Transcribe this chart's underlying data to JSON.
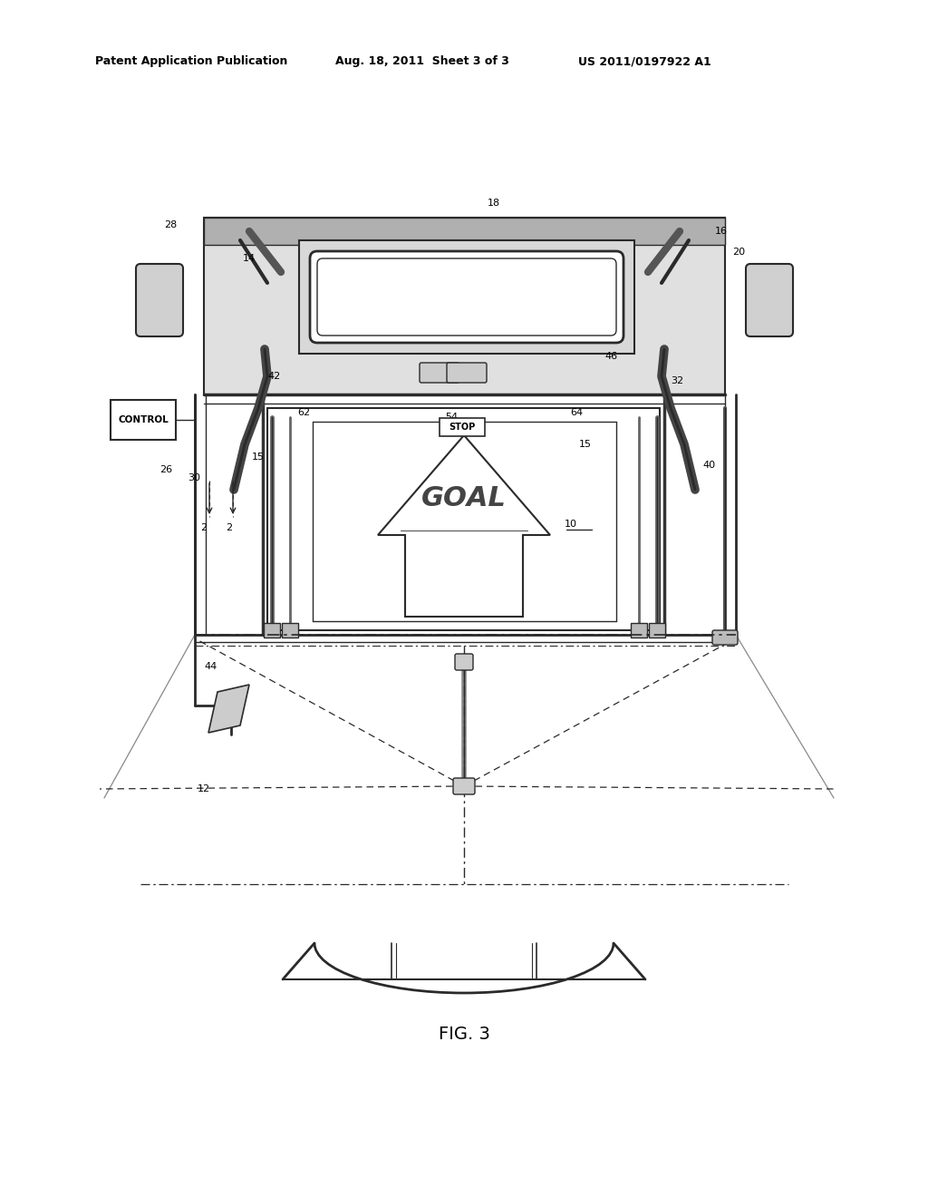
{
  "background_color": "#ffffff",
  "header_text1": "Patent Application Publication",
  "header_text2": "Aug. 18, 2011  Sheet 3 of 3",
  "header_text3": "US 2011/0197922 A1",
  "figure_label": "FIG. 3",
  "line_color": "#2a2a2a",
  "light_line_color": "#555555",
  "very_light_color": "#888888",
  "anno_fontsize": 8,
  "header_fontsize": 9
}
